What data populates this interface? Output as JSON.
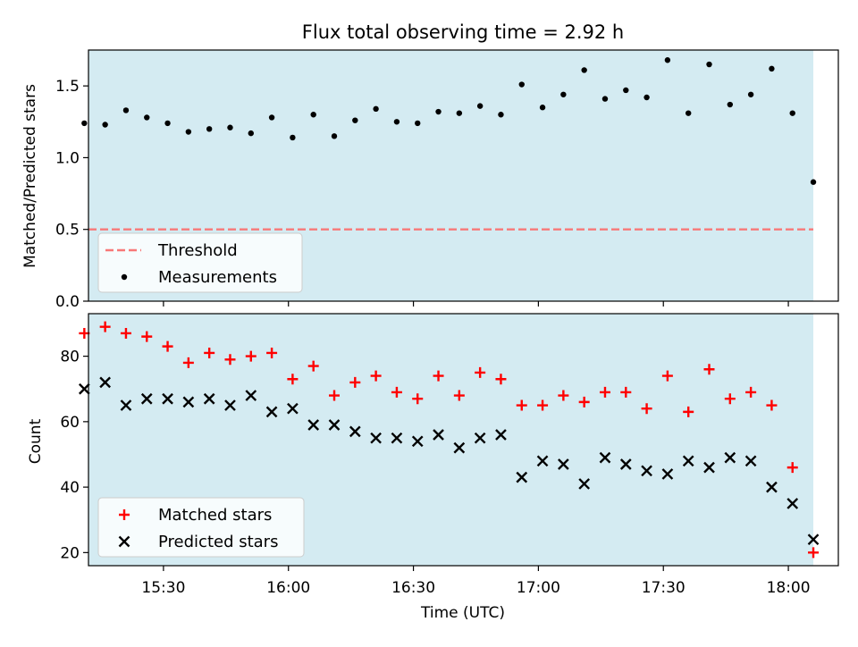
{
  "chart_data": [
    {
      "type": "scatter",
      "title": "Flux total observing time = 2.92 h",
      "xlabel": "",
      "ylabel": "Matched/Predicted stars",
      "ylim": [
        0.0,
        1.75
      ],
      "xlim": [
        "15:12",
        "18:12"
      ],
      "yticks": [
        "0.0",
        "0.5",
        "1.0",
        "1.5"
      ],
      "shaded_span": [
        "15:12",
        "18:06"
      ],
      "shade_color": "#add8e6",
      "grid": false,
      "legend_position": "lower-left",
      "series": [
        {
          "name": "Threshold",
          "style": "dashed-line",
          "color": "#f87878",
          "points": [
            [
              "15:12",
              0.5
            ],
            [
              "18:06",
              0.5
            ]
          ]
        },
        {
          "name": "Measurements",
          "style": "dot",
          "color": "#000000",
          "points": [
            [
              "15:11",
              1.24
            ],
            [
              "15:16",
              1.23
            ],
            [
              "15:21",
              1.33
            ],
            [
              "15:26",
              1.28
            ],
            [
              "15:31",
              1.24
            ],
            [
              "15:36",
              1.18
            ],
            [
              "15:41",
              1.2
            ],
            [
              "15:46",
              1.21
            ],
            [
              "15:51",
              1.17
            ],
            [
              "15:56",
              1.28
            ],
            [
              "16:01",
              1.14
            ],
            [
              "16:06",
              1.3
            ],
            [
              "16:11",
              1.15
            ],
            [
              "16:16",
              1.26
            ],
            [
              "16:21",
              1.34
            ],
            [
              "16:26",
              1.25
            ],
            [
              "16:31",
              1.24
            ],
            [
              "16:36",
              1.32
            ],
            [
              "16:41",
              1.31
            ],
            [
              "16:46",
              1.36
            ],
            [
              "16:51",
              1.3
            ],
            [
              "16:56",
              1.51
            ],
            [
              "17:01",
              1.35
            ],
            [
              "17:06",
              1.44
            ],
            [
              "17:11",
              1.61
            ],
            [
              "17:16",
              1.41
            ],
            [
              "17:21",
              1.47
            ],
            [
              "17:26",
              1.42
            ],
            [
              "17:31",
              1.68
            ],
            [
              "17:36",
              1.31
            ],
            [
              "17:41",
              1.65
            ],
            [
              "17:46",
              1.37
            ],
            [
              "17:51",
              1.44
            ],
            [
              "17:56",
              1.62
            ],
            [
              "18:01",
              1.31
            ],
            [
              "18:06",
              0.83
            ]
          ]
        }
      ]
    },
    {
      "type": "scatter",
      "title": "",
      "xlabel": "Time (UTC)",
      "ylabel": "Count",
      "ylim": [
        16,
        93
      ],
      "xlim": [
        "15:12",
        "18:12"
      ],
      "xticks": [
        "15:30",
        "16:00",
        "16:30",
        "17:00",
        "17:30",
        "18:00"
      ],
      "yticks": [
        "20",
        "40",
        "60",
        "80"
      ],
      "shaded_span": [
        "15:12",
        "18:06"
      ],
      "shade_color": "#add8e6",
      "grid": false,
      "legend_position": "lower-left",
      "series": [
        {
          "name": "Matched stars",
          "marker": "+",
          "color": "#ff0000",
          "points": [
            [
              "15:11",
              87
            ],
            [
              "15:16",
              89
            ],
            [
              "15:21",
              87
            ],
            [
              "15:26",
              86
            ],
            [
              "15:31",
              83
            ],
            [
              "15:36",
              78
            ],
            [
              "15:41",
              81
            ],
            [
              "15:46",
              79
            ],
            [
              "15:51",
              80
            ],
            [
              "15:56",
              81
            ],
            [
              "16:01",
              73
            ],
            [
              "16:06",
              77
            ],
            [
              "16:11",
              68
            ],
            [
              "16:16",
              72
            ],
            [
              "16:21",
              74
            ],
            [
              "16:26",
              69
            ],
            [
              "16:31",
              67
            ],
            [
              "16:36",
              74
            ],
            [
              "16:41",
              68
            ],
            [
              "16:46",
              75
            ],
            [
              "16:51",
              73
            ],
            [
              "16:56",
              65
            ],
            [
              "17:01",
              65
            ],
            [
              "17:06",
              68
            ],
            [
              "17:11",
              66
            ],
            [
              "17:16",
              69
            ],
            [
              "17:21",
              69
            ],
            [
              "17:26",
              64
            ],
            [
              "17:31",
              74
            ],
            [
              "17:36",
              63
            ],
            [
              "17:41",
              76
            ],
            [
              "17:46",
              67
            ],
            [
              "17:51",
              69
            ],
            [
              "17:56",
              65
            ],
            [
              "18:01",
              46
            ],
            [
              "18:06",
              20
            ]
          ]
        },
        {
          "name": "Predicted stars",
          "marker": "x",
          "color": "#000000",
          "points": [
            [
              "15:11",
              70
            ],
            [
              "15:16",
              72
            ],
            [
              "15:21",
              65
            ],
            [
              "15:26",
              67
            ],
            [
              "15:31",
              67
            ],
            [
              "15:36",
              66
            ],
            [
              "15:41",
              67
            ],
            [
              "15:46",
              65
            ],
            [
              "15:51",
              68
            ],
            [
              "15:56",
              63
            ],
            [
              "16:01",
              64
            ],
            [
              "16:06",
              59
            ],
            [
              "16:11",
              59
            ],
            [
              "16:16",
              57
            ],
            [
              "16:21",
              55
            ],
            [
              "16:26",
              55
            ],
            [
              "16:31",
              54
            ],
            [
              "16:36",
              56
            ],
            [
              "16:41",
              52
            ],
            [
              "16:46",
              55
            ],
            [
              "16:51",
              56
            ],
            [
              "16:56",
              43
            ],
            [
              "17:01",
              48
            ],
            [
              "17:06",
              47
            ],
            [
              "17:11",
              41
            ],
            [
              "17:16",
              49
            ],
            [
              "17:21",
              47
            ],
            [
              "17:26",
              45
            ],
            [
              "17:31",
              44
            ],
            [
              "17:36",
              48
            ],
            [
              "17:41",
              46
            ],
            [
              "17:46",
              49
            ],
            [
              "17:51",
              48
            ],
            [
              "17:56",
              40
            ],
            [
              "18:01",
              35
            ],
            [
              "18:06",
              24
            ]
          ]
        }
      ]
    }
  ]
}
